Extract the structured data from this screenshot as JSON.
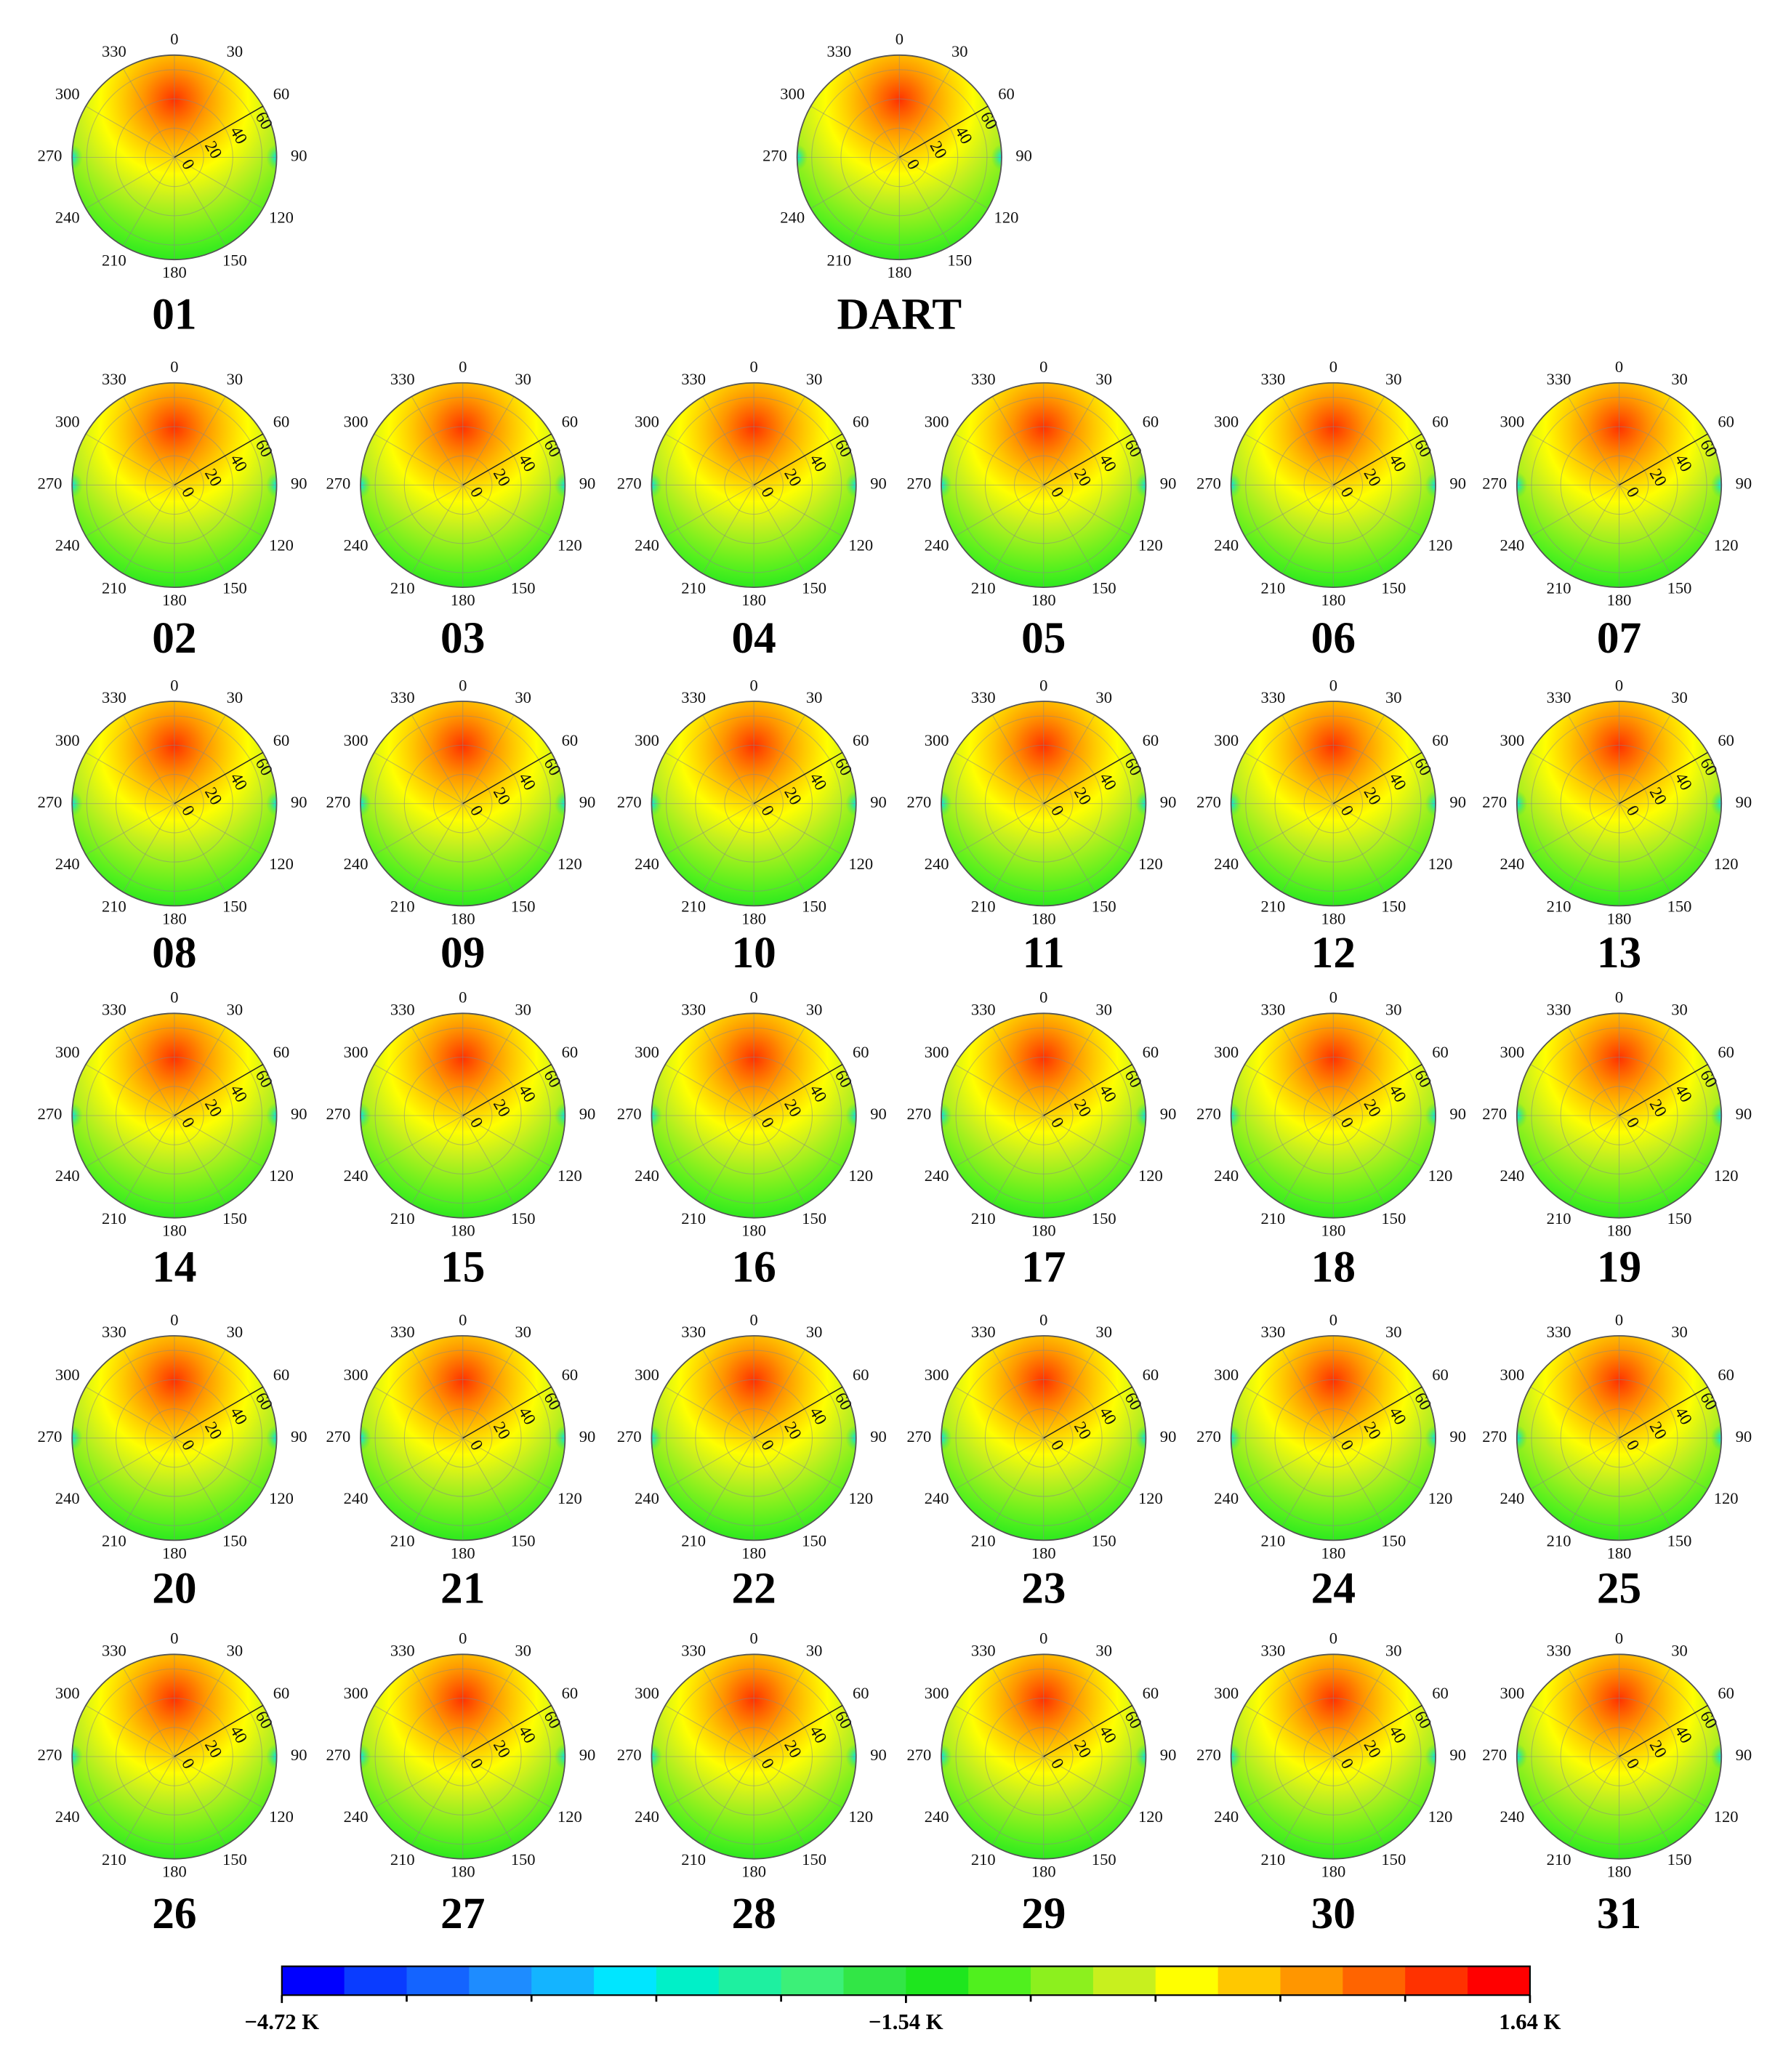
{
  "panels": [
    {
      "label": "01"
    },
    {
      "label": "DART"
    },
    {
      "label": "02"
    },
    {
      "label": "03"
    },
    {
      "label": "04"
    },
    {
      "label": "05"
    },
    {
      "label": "06"
    },
    {
      "label": "07"
    },
    {
      "label": "08"
    },
    {
      "label": "09"
    },
    {
      "label": "10"
    },
    {
      "label": "11"
    },
    {
      "label": "12"
    },
    {
      "label": "13"
    },
    {
      "label": "14"
    },
    {
      "label": "15"
    },
    {
      "label": "16"
    },
    {
      "label": "17"
    },
    {
      "label": "18"
    },
    {
      "label": "19"
    },
    {
      "label": "20"
    },
    {
      "label": "21"
    },
    {
      "label": "22"
    },
    {
      "label": "23"
    },
    {
      "label": "24"
    },
    {
      "label": "25"
    },
    {
      "label": "26"
    },
    {
      "label": "27"
    },
    {
      "label": "28"
    },
    {
      "label": "29"
    },
    {
      "label": "30"
    },
    {
      "label": "31"
    }
  ],
  "angle_ticks": [
    0,
    30,
    60,
    90,
    120,
    150,
    180,
    210,
    240,
    270,
    300,
    330
  ],
  "radial_ticks": [
    0,
    20,
    40,
    60
  ],
  "colorbar": {
    "colors": [
      "#0000ff",
      "#0a3cff",
      "#1464ff",
      "#1e8cff",
      "#14b4ff",
      "#00e6ff",
      "#00f0c8",
      "#1ef0a0",
      "#3cf078",
      "#32e646",
      "#1ee61e",
      "#50f01e",
      "#8cf01e",
      "#c8f01e",
      "#ffff00",
      "#ffc800",
      "#ff9600",
      "#ff6400",
      "#ff3200",
      "#ff0000"
    ],
    "labels": [
      {
        "value": -4.72,
        "label": "−4.72 K"
      },
      {
        "value": -1.54,
        "label": "−1.54 K"
      },
      {
        "value": 1.64,
        "label": "1.64 K"
      }
    ]
  }
}
